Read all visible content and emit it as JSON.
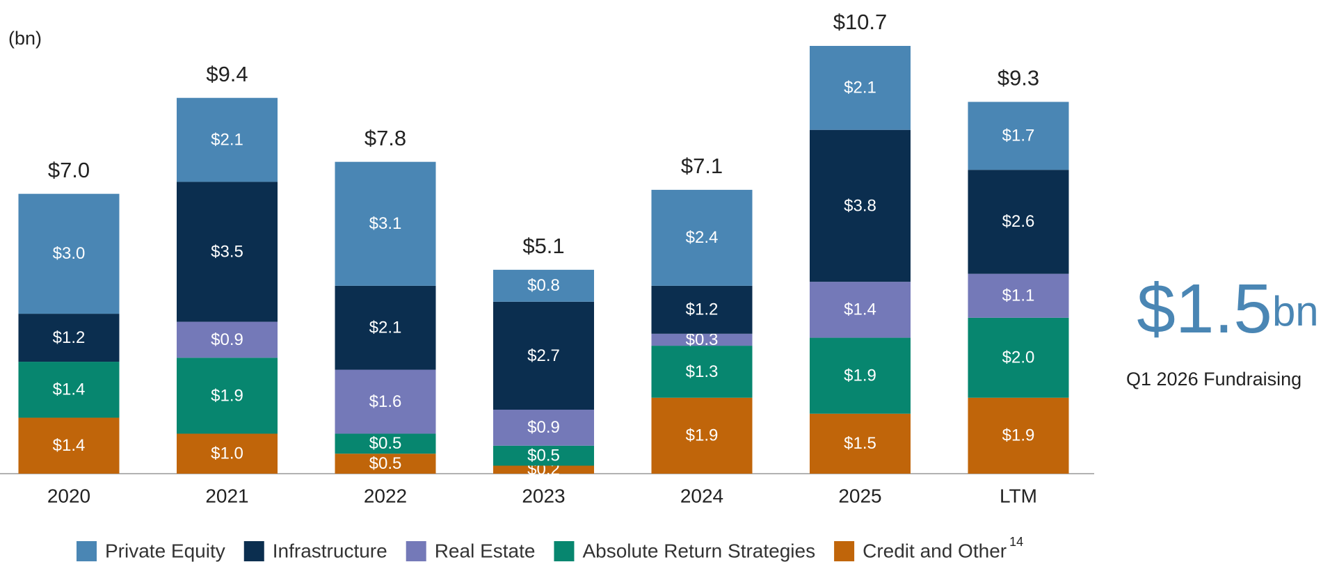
{
  "chart_data": {
    "type": "stacked-bar",
    "y_unit_label": "(bn)",
    "categories": [
      "2020",
      "2021",
      "2022",
      "2023",
      "2024",
      "2025",
      "LTM"
    ],
    "series": [
      {
        "name": "Credit and Other",
        "color": "#c0650a",
        "values": [
          1.4,
          1.0,
          0.5,
          0.2,
          1.9,
          1.5,
          1.9
        ],
        "value_labels": [
          "$1.4",
          "$1.0",
          "$0.5",
          "$0.2",
          "$1.9",
          "$1.5",
          "$1.9"
        ]
      },
      {
        "name": "Absolute Return Strategies",
        "color": "#07866f",
        "values": [
          1.4,
          1.9,
          0.5,
          0.5,
          1.3,
          1.9,
          2.0
        ],
        "value_labels": [
          "$1.4",
          "$1.9",
          "$0.5",
          "$0.5",
          "$1.3",
          "$1.9",
          "$2.0"
        ]
      },
      {
        "name": "Real Estate",
        "color": "#7479b8",
        "values": [
          null,
          0.9,
          1.6,
          0.9,
          0.3,
          1.4,
          1.1
        ],
        "value_labels": [
          null,
          "$0.9",
          "$1.6",
          "$0.9",
          "$0.3",
          "$1.4",
          "$1.1"
        ]
      },
      {
        "name": "Infrastructure",
        "color": "#0b2e4f",
        "values": [
          1.2,
          3.5,
          2.1,
          2.7,
          1.2,
          3.8,
          2.6
        ],
        "value_labels": [
          "$1.2",
          "$3.5",
          "$2.1",
          "$2.7",
          "$1.2",
          "$3.8",
          "$2.6"
        ]
      },
      {
        "name": "Private Equity",
        "color": "#4a86b4",
        "values": [
          3.0,
          2.1,
          3.1,
          0.8,
          2.4,
          2.1,
          1.7
        ],
        "value_labels": [
          "$3.0",
          "$2.1",
          "$3.1",
          "$0.8",
          "$2.4",
          "$2.1",
          "$1.7"
        ]
      }
    ],
    "totals": [
      7.0,
      9.4,
      7.8,
      5.1,
      7.1,
      10.7,
      9.3
    ],
    "total_labels": [
      "$7.0",
      "$9.4",
      "$7.8",
      "$5.1",
      "$7.1",
      "$10.7",
      "$9.3"
    ],
    "legend_footnote": "14",
    "highlight": {
      "value_label": "$1.5",
      "unit": "bn",
      "caption": "Q1 2026 Fundraising"
    }
  }
}
